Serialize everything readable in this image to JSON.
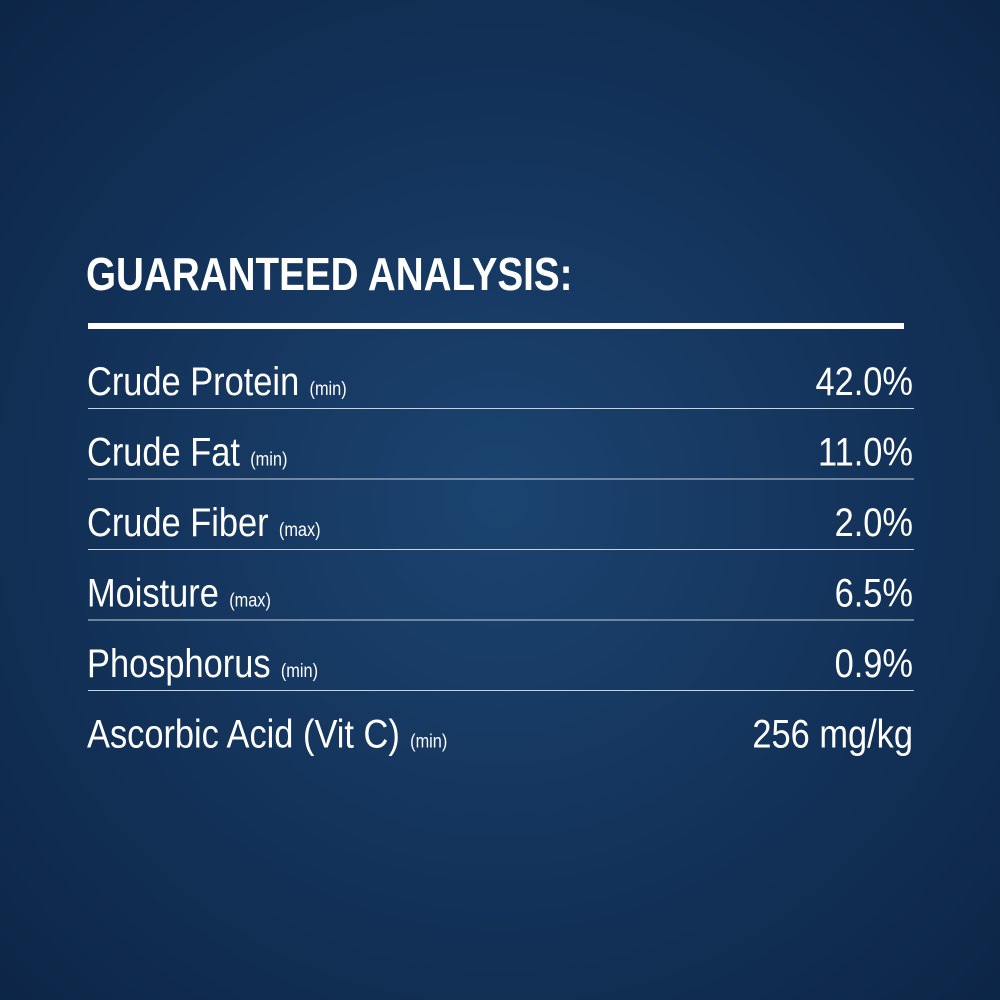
{
  "header": {
    "title": "GUARANTEED ANALYSIS:"
  },
  "table": {
    "rows": [
      {
        "name": "Crude Protein",
        "qualifier": "(min)",
        "value": "42.0%"
      },
      {
        "name": "Crude Fat",
        "qualifier": "(min)",
        "value": "11.0%"
      },
      {
        "name": "Crude Fiber",
        "qualifier": "(max)",
        "value": "2.0%"
      },
      {
        "name": "Moisture",
        "qualifier": "(max)",
        "value": "6.5%"
      },
      {
        "name": "Phosphorus",
        "qualifier": "(min)",
        "value": "0.9%"
      },
      {
        "name": "Ascorbic Acid (Vit C)",
        "qualifier": "(min)",
        "value": "256 mg/kg"
      }
    ]
  }
}
